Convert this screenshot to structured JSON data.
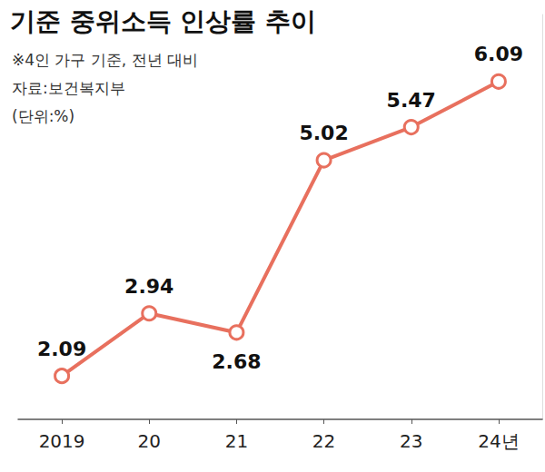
{
  "chart_data": {
    "type": "line",
    "title": "기준 중위소득 인상률 추이",
    "subtitle": "※4인 가구 기준, 전년 대비",
    "source": "자료:보건복지부",
    "unit": "(단위:%)",
    "categories": [
      "2019",
      "20",
      "21",
      "22",
      "23",
      "24년"
    ],
    "values": [
      2.09,
      2.94,
      2.68,
      5.02,
      5.47,
      6.09
    ],
    "color": "#e8705e",
    "marker": "hollow circle",
    "ylim": [
      1.5,
      7
    ],
    "tick_labels": "x",
    "grid": false,
    "data_labels": true
  }
}
